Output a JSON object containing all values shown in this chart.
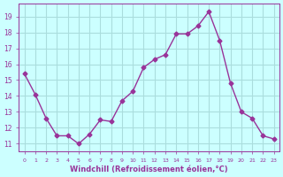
{
  "x": [
    0,
    1,
    2,
    3,
    4,
    5,
    6,
    7,
    8,
    9,
    10,
    11,
    12,
    13,
    14,
    15,
    16,
    17,
    18,
    19,
    20,
    21,
    22,
    23
  ],
  "y": [
    15.4,
    14.1,
    12.6,
    11.5,
    11.5,
    11.0,
    11.6,
    12.5,
    12.4,
    13.7,
    14.3,
    15.8,
    16.3,
    16.6,
    17.9,
    17.9,
    18.4,
    19.3,
    17.5,
    14.8,
    13.0,
    12.6,
    11.5,
    11.3
  ],
  "line_color": "#993399",
  "marker": "D",
  "marker_size": 2.5,
  "bg_color": "#ccffff",
  "grid_color": "#aadddd",
  "xlabel": "Windchill (Refroidissement éolien,°C)",
  "xlabel_color": "#993399",
  "tick_color": "#993399",
  "ylim": [
    10.5,
    19.8
  ],
  "yticks": [
    11,
    12,
    13,
    14,
    15,
    16,
    17,
    18,
    19
  ],
  "xticks": [
    0,
    1,
    2,
    3,
    4,
    5,
    6,
    7,
    8,
    9,
    10,
    11,
    12,
    13,
    14,
    15,
    16,
    17,
    18,
    19,
    20,
    21,
    22,
    23
  ],
  "xlim": [
    -0.5,
    23.5
  ]
}
